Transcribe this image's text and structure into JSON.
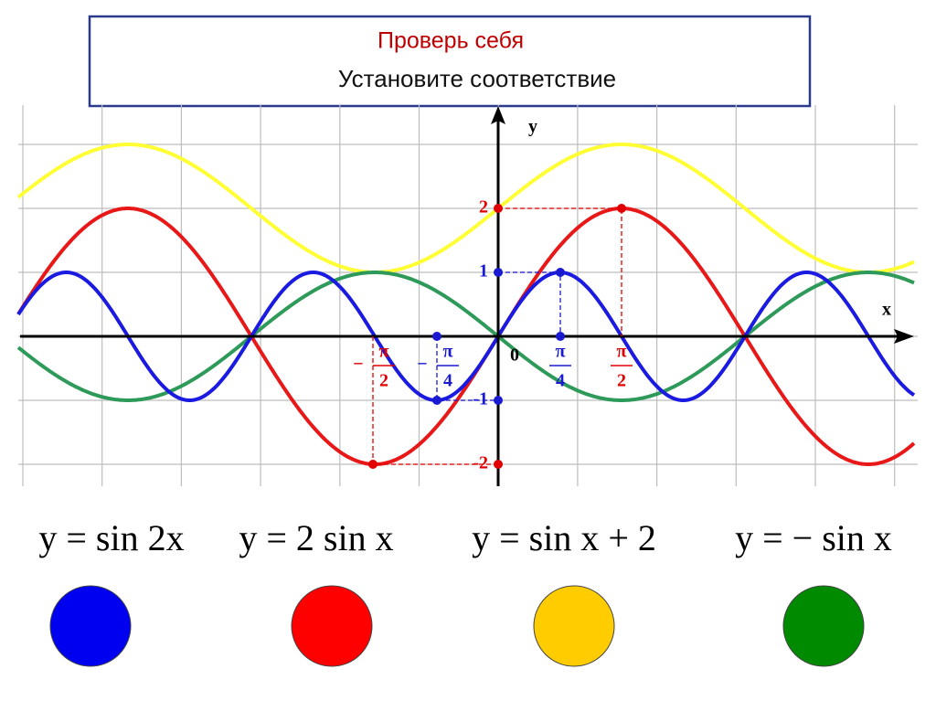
{
  "header": {
    "title": "Проверь себя",
    "subtitle": "Установите соответствие"
  },
  "graph": {
    "y_axis_label": "y",
    "x_axis_label": "x",
    "origin_label": "0",
    "y_labels": [
      {
        "text": "2",
        "color": "#e00000"
      },
      {
        "text": "1",
        "color": "#1a1ad0"
      },
      {
        "text": "-1",
        "color": "#1a1ad0"
      },
      {
        "text": "-2",
        "color": "#e00000"
      }
    ],
    "x_labels": [
      {
        "sign": "−",
        "num": "π",
        "den": "2",
        "color": "#e00000"
      },
      {
        "sign": "−",
        "num": "π",
        "den": "4",
        "color": "#1a1ad0"
      },
      {
        "num": "π",
        "den": "4",
        "color": "#1a1ad0"
      },
      {
        "num": "π",
        "den": "2",
        "color": "#e00000"
      }
    ]
  },
  "answers": [
    {
      "formula": "y = sin 2x",
      "color": "#0000f0"
    },
    {
      "formula": "y = 2 sin x",
      "color": "#ff0000"
    },
    {
      "formula": "y = sin x + 2",
      "color": "#ffcc00"
    },
    {
      "formula": "y = − sin x",
      "color": "#008a00"
    }
  ]
}
